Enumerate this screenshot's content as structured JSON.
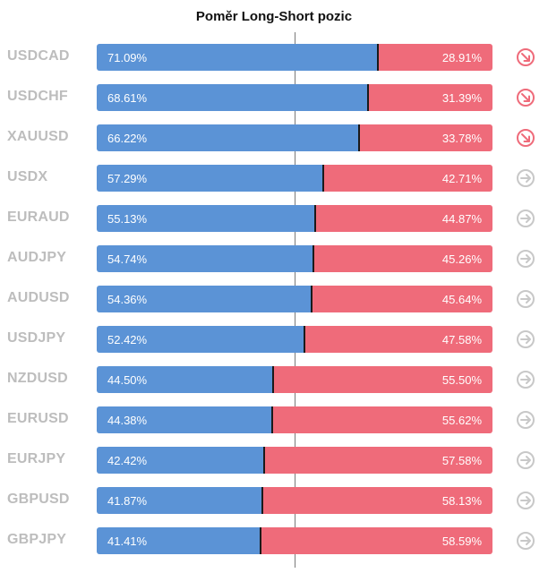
{
  "chart_data": {
    "type": "bar",
    "title": "Poměr Long-Short pozic",
    "categories": [
      "USDCAD",
      "USDCHF",
      "XAUUSD",
      "USDX",
      "EURAUD",
      "AUDJPY",
      "AUDUSD",
      "USDJPY",
      "NZDUSD",
      "EURUSD",
      "EURJPY",
      "GBPUSD",
      "GBPJPY"
    ],
    "series": [
      {
        "values": [
          71.09,
          68.61,
          66.22,
          57.29,
          55.13,
          54.74,
          54.36,
          52.42,
          44.5,
          44.38,
          42.42,
          41.87,
          41.41
        ]
      },
      {
        "values": [
          28.91,
          31.39,
          33.78,
          42.71,
          44.87,
          45.26,
          45.64,
          47.58,
          55.5,
          55.62,
          57.58,
          58.13,
          58.59
        ]
      }
    ],
    "long_labels": [
      "71.09%",
      "68.61%",
      "66.22%",
      "57.29%",
      "55.13%",
      "54.74%",
      "54.36%",
      "52.42%",
      "44.50%",
      "44.38%",
      "42.42%",
      "41.87%",
      "41.41%"
    ],
    "short_labels": [
      "28.91%",
      "31.39%",
      "33.78%",
      "42.71%",
      "44.87%",
      "45.26%",
      "45.64%",
      "47.58%",
      "55.50%",
      "55.62%",
      "57.58%",
      "58.13%",
      "58.59%"
    ],
    "signals": [
      "arrow-down-right-icon",
      "arrow-down-right-icon",
      "arrow-down-right-icon",
      "arrow-right-icon",
      "arrow-right-icon",
      "arrow-right-icon",
      "arrow-right-icon",
      "arrow-right-icon",
      "arrow-right-icon",
      "arrow-right-icon",
      "arrow-right-icon",
      "arrow-right-icon",
      "arrow-right-icon"
    ],
    "colors": {
      "long": "#5b93d6",
      "short": "#ef6b7a",
      "signal_sell": "#ef6b7a",
      "signal_neutral": "#c8c8c8"
    },
    "xlim": [
      0,
      100
    ],
    "stacked": true,
    "legend": "none",
    "grid": false
  }
}
